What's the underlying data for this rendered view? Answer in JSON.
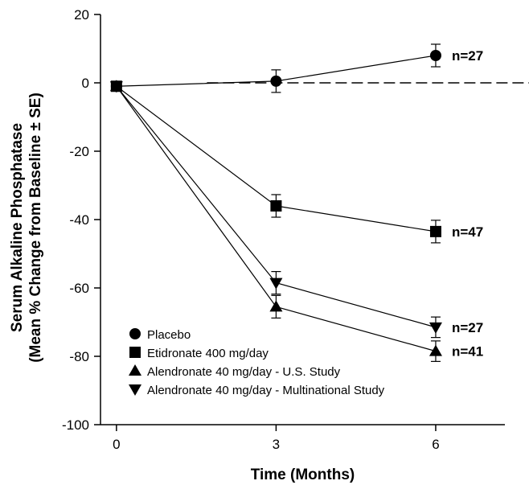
{
  "chart_data": {
    "type": "line",
    "xlabel": "Time (Months)",
    "ylabel_lines": [
      "Serum Alkaline Phosphatase",
      "(Mean % Change from Baseline ± SE)"
    ],
    "x": [
      0,
      3,
      6
    ],
    "x_ticks": [
      "0",
      "3",
      "6"
    ],
    "xlim": [
      -0.3,
      7.3
    ],
    "ylim": [
      -100,
      20
    ],
    "y_ticks": [
      "20",
      "0",
      "-20",
      "-40",
      "-60",
      "-80",
      "-100"
    ],
    "y_tick_values": [
      20,
      0,
      -20,
      -40,
      -60,
      -80,
      -100
    ],
    "reference_line": {
      "y": 0,
      "style": "dashed",
      "x_start": 1.7
    },
    "grid": false,
    "legend_position": "bottom-left",
    "series": [
      {
        "name": "Placebo",
        "marker": "circle",
        "values": [
          -1,
          0.5,
          8
        ],
        "se": [
          0.8,
          3.3,
          3.3
        ],
        "end_label": "n=27"
      },
      {
        "name": "Etidronate 400 mg/day",
        "marker": "square",
        "values": [
          -1,
          -36,
          -43.5
        ],
        "se": [
          0.8,
          3.3,
          3.3
        ],
        "end_label": "n=47"
      },
      {
        "name": "Alendronate 40 mg/day - U.S. Study",
        "marker": "triangle-up",
        "values": [
          -1,
          -65.5,
          -78.5
        ],
        "se": [
          0.8,
          3.3,
          3.0
        ],
        "end_label": "n=41"
      },
      {
        "name": "Alendronate 40 mg/day - Multinational Study",
        "marker": "triangle-down",
        "values": [
          -1,
          -58.5,
          -71.5
        ],
        "se": [
          0.8,
          3.3,
          3.0
        ],
        "end_label": "n=27"
      }
    ]
  }
}
